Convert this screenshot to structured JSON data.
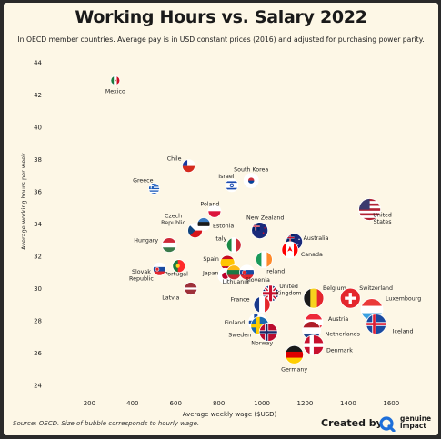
{
  "header": {
    "title": "Working Hours vs. Salary 2022",
    "subtitle": "In OECD member countries. Average pay is in USD constant prices (2016) and adjusted for purchasing power parity."
  },
  "footer": {
    "source": "Source: OECD. Size of bubble corresponds to hourly wage.",
    "created_by": "Created by",
    "brand_line1": "genuine",
    "brand_line2": "impact",
    "logo_icon": "genuine-impact-logo-icon"
  },
  "colors": {
    "background": "#fdf7e6",
    "grid": "#ece2c4",
    "text": "#222222"
  },
  "chart_data": {
    "type": "scatter",
    "title": "Working Hours vs. Salary 2022",
    "xlabel": "Average weekly wage ($USD)",
    "ylabel": "Average working hours per week",
    "xlim": [
      0,
      1700
    ],
    "ylim": [
      24,
      44
    ],
    "xticks": [
      200,
      400,
      600,
      800,
      1000,
      1200,
      1400,
      1600
    ],
    "yticks": [
      24,
      26,
      28,
      30,
      32,
      34,
      36,
      38,
      40,
      42,
      44
    ],
    "grid": false,
    "points": [
      {
        "label": "Mexico",
        "x": 320,
        "y": 42.9,
        "flag": "mexico"
      },
      {
        "label": "Greece",
        "x": 500,
        "y": 36.2,
        "flag": "greece"
      },
      {
        "label": "Chile",
        "x": 660,
        "y": 37.6,
        "flag": "chile"
      },
      {
        "label": "Israel",
        "x": 860,
        "y": 36.4,
        "flag": "israel"
      },
      {
        "label": "South Korea",
        "x": 950,
        "y": 36.7,
        "flag": "south-korea"
      },
      {
        "label": "Poland",
        "x": 780,
        "y": 34.8,
        "flag": "poland"
      },
      {
        "label": "Czech Republic",
        "x": 690,
        "y": 33.6,
        "flag": "czech-republic"
      },
      {
        "label": "Estonia",
        "x": 730,
        "y": 34.0,
        "flag": "estonia"
      },
      {
        "label": "New Zealand",
        "x": 990,
        "y": 33.6,
        "flag": "new-zealand"
      },
      {
        "label": "Australia",
        "x": 1150,
        "y": 32.9,
        "flag": "australia"
      },
      {
        "label": "Canada",
        "x": 1130,
        "y": 32.4,
        "flag": "canada"
      },
      {
        "label": "United States",
        "x": 1500,
        "y": 34.9,
        "flag": "united-states"
      },
      {
        "label": "Hungary",
        "x": 570,
        "y": 32.7,
        "flag": "hungary"
      },
      {
        "label": "Italy",
        "x": 870,
        "y": 32.7,
        "flag": "italy"
      },
      {
        "label": "Ireland",
        "x": 1010,
        "y": 31.8,
        "flag": "ireland"
      },
      {
        "label": "Spain",
        "x": 840,
        "y": 31.6,
        "flag": "spain"
      },
      {
        "label": "Slovak Republic",
        "x": 525,
        "y": 31.2,
        "flag": "slovak-republic"
      },
      {
        "label": "Portugal",
        "x": 615,
        "y": 31.4,
        "flag": "portugal"
      },
      {
        "label": "Japan",
        "x": 830,
        "y": 30.8,
        "flag": "japan"
      },
      {
        "label": "Lithuania",
        "x": 870,
        "y": 31.0,
        "flag": "lithuania"
      },
      {
        "label": "Slovenia",
        "x": 930,
        "y": 31.0,
        "flag": "slovenia"
      },
      {
        "label": "Latvia",
        "x": 670,
        "y": 30.0,
        "flag": "latvia"
      },
      {
        "label": "United Kingdom",
        "x": 1040,
        "y": 29.7,
        "flag": "united-kingdom"
      },
      {
        "label": "France",
        "x": 1000,
        "y": 29.0,
        "flag": "france"
      },
      {
        "label": "Belgium",
        "x": 1240,
        "y": 29.4,
        "flag": "belgium"
      },
      {
        "label": "Switzerland",
        "x": 1410,
        "y": 29.4,
        "flag": "switzerland"
      },
      {
        "label": "Luxembourg",
        "x": 1510,
        "y": 28.7,
        "flag": "luxembourg"
      },
      {
        "label": "Finland",
        "x": 980,
        "y": 27.9,
        "flag": "finland"
      },
      {
        "label": "Sweden",
        "x": 990,
        "y": 27.7,
        "flag": "sweden"
      },
      {
        "label": "Norway",
        "x": 1030,
        "y": 27.3,
        "flag": "norway"
      },
      {
        "label": "Austria",
        "x": 1240,
        "y": 27.9,
        "flag": "austria"
      },
      {
        "label": "Netherlands",
        "x": 1230,
        "y": 27.4,
        "flag": "netherlands"
      },
      {
        "label": "Iceland",
        "x": 1530,
        "y": 27.8,
        "flag": "iceland"
      },
      {
        "label": "Denmark",
        "x": 1240,
        "y": 26.5,
        "flag": "denmark"
      },
      {
        "label": "Germany",
        "x": 1150,
        "y": 25.9,
        "flag": "germany"
      }
    ]
  }
}
